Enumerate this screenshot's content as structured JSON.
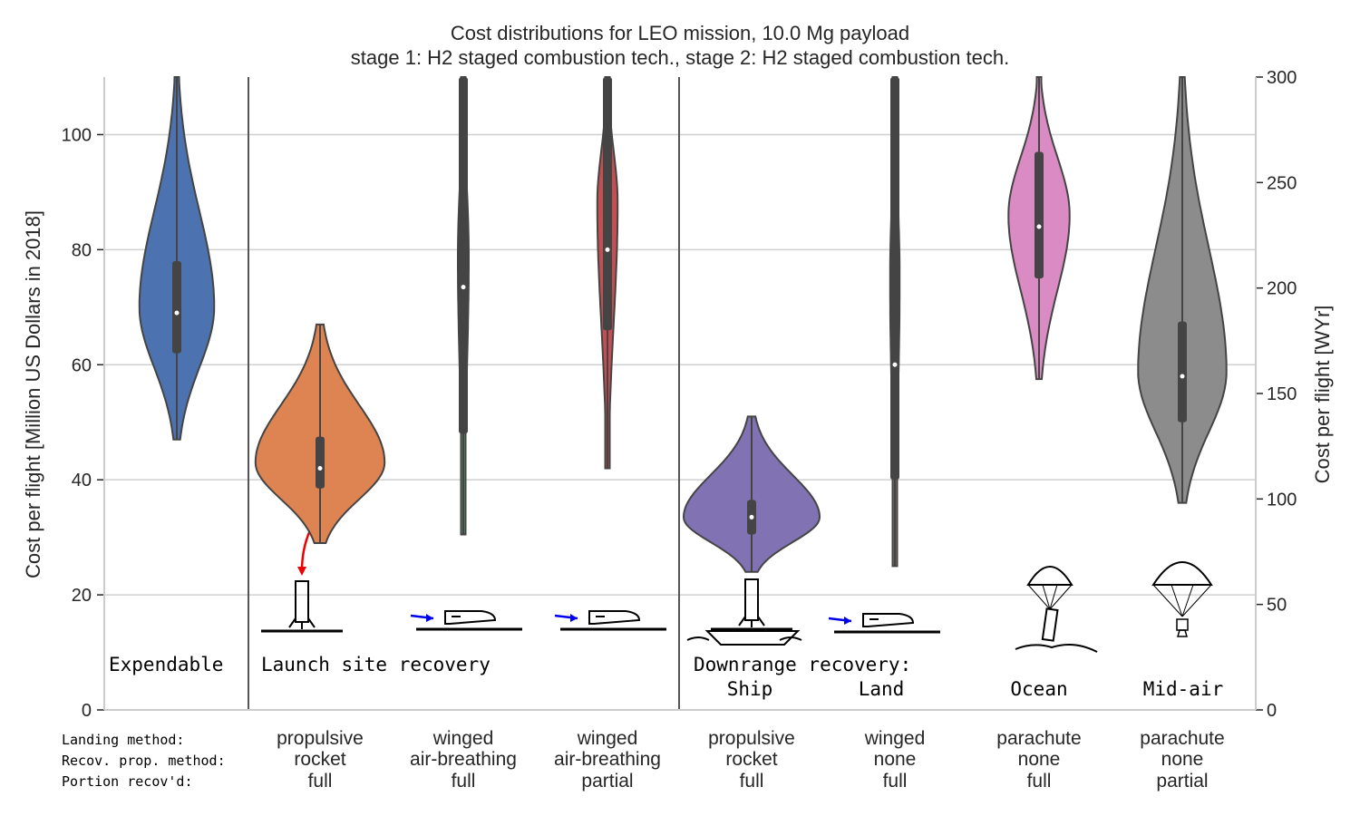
{
  "chart_data": {
    "type": "violin",
    "title_line1": "Cost distributions for LEO mission, 10.0 Mg payload",
    "title_line2": "stage 1: H2 staged combustion tech., stage 2: H2 staged combustion tech.",
    "ylabel": "Cost per flight [Million US Dollars in 2018]",
    "ylabel_right": "Cost per flight [WYr]",
    "ylim": [
      0,
      110
    ],
    "yticks": [
      "0",
      "20",
      "40",
      "60",
      "80",
      "100"
    ],
    "ylim_right": [
      0,
      300
    ],
    "yticks_right": [
      "0",
      "50",
      "100",
      "150",
      "200",
      "250",
      "300"
    ],
    "grid": true,
    "row_labels": [
      "Landing method:",
      "Recov. prop. method:",
      "Portion recov'd:"
    ],
    "regions": [
      {
        "line1": "Expendable",
        "line2": ""
      },
      {
        "line1": "Launch site recovery",
        "line2": ""
      },
      {
        "line1": "Downrange recovery:",
        "line2": ""
      }
    ],
    "sublabels": [
      "Ship",
      "Land",
      "Ocean",
      "Mid-air"
    ],
    "series": [
      {
        "landing": "",
        "prop": "",
        "portion": "",
        "color": "#4c72b0",
        "min": 47,
        "max": 110,
        "q1": 62,
        "q3": 78,
        "median": 69,
        "width_peak": 0.55
      },
      {
        "landing": "propulsive",
        "prop": "rocket",
        "portion": "full",
        "color": "#dd8452",
        "min": 29,
        "max": 67,
        "q1": 38.5,
        "q3": 47.5,
        "median": 42,
        "width_peak": 0.95
      },
      {
        "landing": "winged",
        "prop": "air-breathing",
        "portion": "full",
        "color": "#55a868",
        "min": 30.5,
        "max": 110,
        "q1": 48,
        "q3": 110,
        "median": 73.5,
        "width_peak": 0.08
      },
      {
        "landing": "winged",
        "prop": "air-breathing",
        "portion": "partial",
        "color": "#c44e52",
        "min": 42,
        "max": 110,
        "q1": 66,
        "q3": 110,
        "median": 80,
        "width_peak": 0.15
      },
      {
        "landing": "propulsive",
        "prop": "rocket",
        "portion": "full",
        "color": "#8172b3",
        "min": 24,
        "max": 51,
        "q1": 30.5,
        "q3": 36.5,
        "median": 33.5,
        "width_peak": 1.0
      },
      {
        "landing": "winged",
        "prop": "none",
        "portion": "full",
        "color": "#937860",
        "min": 25,
        "max": 110,
        "q1": 40,
        "q3": 110,
        "median": 60,
        "width_peak": 0.07
      },
      {
        "landing": "parachute",
        "prop": "none",
        "portion": "full",
        "color": "#da8bc3",
        "min": 57.5,
        "max": 110,
        "q1": 75,
        "q3": 97,
        "median": 84,
        "width_peak": 0.45
      },
      {
        "landing": "parachute",
        "prop": "none",
        "portion": "partial",
        "color": "#8c8c8c",
        "min": 36,
        "max": 110,
        "q1": 50,
        "q3": 67.5,
        "median": 58,
        "width_peak": 0.65
      }
    ]
  }
}
